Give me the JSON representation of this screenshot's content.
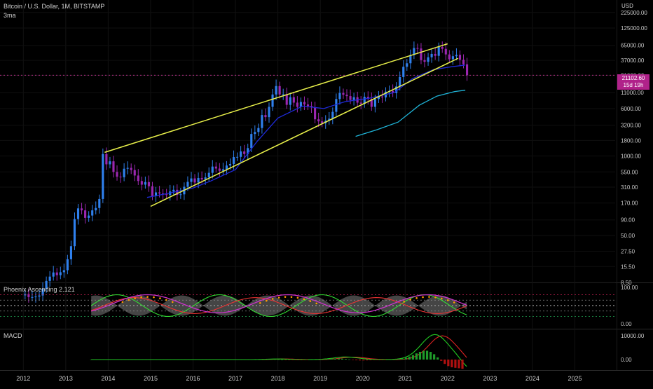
{
  "header": {
    "symbol": "Bitcoin / U.S. Dollar, 1M, BITSTAMP",
    "indicator": "3ma",
    "currency": "USD"
  },
  "price_tag": {
    "value": "21102.60",
    "countdown": "15d 19h"
  },
  "panes": {
    "phoenix_title": "Phoenix Ascending 2.121",
    "macd_title": "MACD"
  },
  "colors": {
    "up": "#2f80ed",
    "down": "#9c27b0",
    "trendline": "#e8f04a",
    "ma_blue": "#1e2ad8",
    "ma_cyan": "#1fb4d8",
    "phoenix_green": "#33dd33",
    "phoenix_red": "#ee3333",
    "phoenix_magenta": "#cc33cc",
    "phoenix_dots": "#ff9900",
    "phoenix_fill": "#9a9a9a",
    "macd_green": "#22cc22",
    "macd_red": "#dd2222",
    "hist_up": "#1f9a2a",
    "hist_down": "#b01010",
    "price_line": "#cc3399"
  },
  "chart_data": [
    {
      "type": "candlestick",
      "title": "Bitcoin / U.S. Dollar, 1M, BITSTAMP",
      "ylabel": "USD",
      "yscale": "log",
      "ylim": [
        8.5,
        360000
      ],
      "xlim": [
        2011.45,
        2025.95
      ],
      "x_ticks": [
        "2012",
        "2013",
        "2014",
        "2015",
        "2016",
        "2017",
        "2018",
        "2019",
        "2020",
        "2021",
        "2022",
        "2023",
        "2024",
        "2025"
      ],
      "y_ticks": [
        8.5,
        15.5,
        27.5,
        50,
        90,
        170,
        310,
        550,
        1000,
        1800,
        3200,
        6000,
        11000,
        21000,
        37000,
        65000,
        125000,
        225000
      ],
      "y_tick_labels": [
        "8.50",
        "15.50",
        "27.50",
        "50.00",
        "90.00",
        "170.00",
        "310.00",
        "550.00",
        "1000.00",
        "1800.00",
        "3200.00",
        "6000.00",
        "11000.00",
        "21000.00",
        "37000.00",
        "65000.00",
        "125000.00",
        "225000.00"
      ],
      "last_price": 21102.6,
      "series_ohlc_monthly_start": "2012-01",
      "closes": [
        5.5,
        4.9,
        4.9,
        5.0,
        5.2,
        6.7,
        9.0,
        10.6,
        12.4,
        11.2,
        12.5,
        13.5,
        20.4,
        33.4,
        93,
        139,
        129,
        97,
        106,
        129,
        141,
        198,
        1080,
        732,
        820,
        550,
        460,
        450,
        620,
        640,
        590,
        480,
        390,
        340,
        375,
        320,
        220,
        254,
        244,
        236,
        230,
        263,
        280,
        231,
        236,
        314,
        378,
        430,
        369,
        437,
        416,
        448,
        531,
        673,
        624,
        574,
        608,
        700,
        742,
        964,
        970,
        1190,
        1080,
        1350,
        2300,
        2480,
        2880,
        4700,
        4340,
        6400,
        10200,
        14000,
        10200,
        10300,
        6900,
        9200,
        7500,
        6400,
        7700,
        7000,
        6600,
        6300,
        4000,
        3700,
        3450,
        3800,
        4100,
        5300,
        8600,
        10800,
        10100,
        9600,
        8300,
        9200,
        7500,
        7200,
        9350,
        8600,
        6400,
        8600,
        9450,
        9140,
        11350,
        11650,
        10780,
        13800,
        19700,
        29000,
        33100,
        45200,
        58800,
        57800,
        37300,
        35000,
        41500,
        47100,
        43800,
        61300,
        57000,
        46200,
        38500,
        43200,
        45500,
        37700,
        31800,
        21102.6
      ],
      "trendlines": [
        {
          "from": [
            "2013-12",
            1150
          ],
          "to": [
            "2022-01",
            69000
          ]
        },
        {
          "from": [
            "2015-01",
            150
          ],
          "to": [
            "2022-04",
            40000
          ]
        }
      ],
      "moving_averages": [
        {
          "points": [
            [
              "2014-12",
              210
            ],
            [
              "2015-06",
              245
            ],
            [
              "2016-01",
              300
            ],
            [
              "2016-06",
              390
            ],
            [
              "2017-01",
              600
            ],
            [
              "2017-07",
              1700
            ],
            [
              "2018-01",
              4200
            ],
            [
              "2018-08",
              6600
            ],
            [
              "2019-02",
              6000
            ],
            [
              "2019-08",
              7800
            ],
            [
              "2020-03",
              8900
            ],
            [
              "2020-10",
              11000
            ],
            [
              "2021-03",
              18500
            ],
            [
              "2021-09",
              26000
            ],
            [
              "2022-02",
              29000
            ],
            [
              "2022-06",
              31000
            ]
          ]
        },
        {
          "points": [
            [
              "2019-11",
              2100
            ],
            [
              "2020-05",
              2700
            ],
            [
              "2020-11",
              3600
            ],
            [
              "2021-05",
              6800
            ],
            [
              "2021-10",
              9600
            ],
            [
              "2022-03",
              11400
            ],
            [
              "2022-06",
              12000
            ]
          ]
        }
      ]
    },
    {
      "type": "line",
      "title": "Phoenix Ascending 2.121",
      "ylim": [
        -10,
        110
      ],
      "y_ticks": [
        100,
        0
      ],
      "y_tick_labels": [
        "100.00",
        "0.00"
      ],
      "reference_levels": [
        80,
        65,
        50,
        35,
        20
      ]
    },
    {
      "type": "histogram",
      "title": "MACD",
      "y_ticks": [
        10000,
        0
      ],
      "y_tick_labels": [
        "10000.00",
        "0.00"
      ]
    }
  ]
}
